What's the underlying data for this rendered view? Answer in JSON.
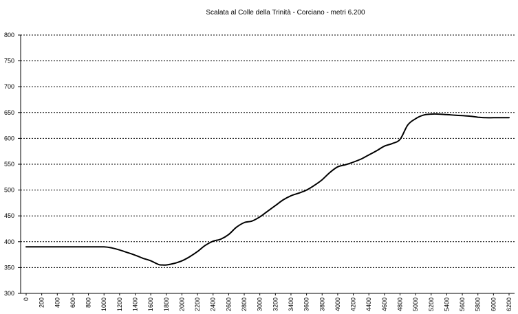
{
  "chart_data": {
    "type": "line",
    "title": "Scalata al Colle della Trinità - Corciano - metri 6.200",
    "xlabel": "",
    "ylabel": "",
    "ylim": [
      300,
      800
    ],
    "xlim": [
      0,
      6200
    ],
    "grid": "horizontal dashed",
    "line_color": "#000000",
    "y_ticks": [
      "300",
      "350",
      "400",
      "450",
      "500",
      "550",
      "600",
      "650",
      "700",
      "750",
      "800"
    ],
    "x_ticks": [
      "0",
      "200",
      "400",
      "600",
      "800",
      "1000",
      "1200",
      "1400",
      "1600",
      "1800",
      "2000",
      "2200",
      "2400",
      "2600",
      "2800",
      "3000",
      "3200",
      "3400",
      "3600",
      "3800",
      "4000",
      "4200",
      "4400",
      "4600",
      "4800",
      "5000",
      "5200",
      "5400",
      "5600",
      "5800",
      "6000",
      "6200"
    ],
    "series": [
      {
        "x": [
          0,
          200,
          400,
          600,
          800,
          1000,
          1100,
          1200,
          1300,
          1400,
          1500,
          1600,
          1700,
          1750,
          1800,
          1900,
          2000,
          2100,
          2200,
          2300,
          2400,
          2500,
          2600,
          2700,
          2800,
          2900,
          3000,
          3100,
          3200,
          3300,
          3400,
          3500,
          3600,
          3700,
          3800,
          3900,
          4000,
          4100,
          4200,
          4300,
          4400,
          4500,
          4600,
          4700,
          4800,
          4900,
          5000,
          5100,
          5200,
          5300,
          5400,
          5500,
          5600,
          5700,
          5800,
          5900,
          6000,
          6100,
          6200
        ],
        "y": [
          390,
          390,
          390,
          390,
          390,
          390,
          388,
          384,
          379,
          374,
          368,
          363,
          356,
          355,
          355,
          358,
          363,
          371,
          381,
          393,
          401,
          405,
          414,
          428,
          437,
          440,
          448,
          459,
          470,
          481,
          489,
          494,
          500,
          509,
          520,
          534,
          545,
          549,
          554,
          560,
          568,
          576,
          585,
          590,
          598,
          626,
          638,
          645,
          647,
          647,
          646,
          645,
          644,
          643,
          641,
          640,
          640,
          640,
          640
        ]
      }
    ]
  }
}
